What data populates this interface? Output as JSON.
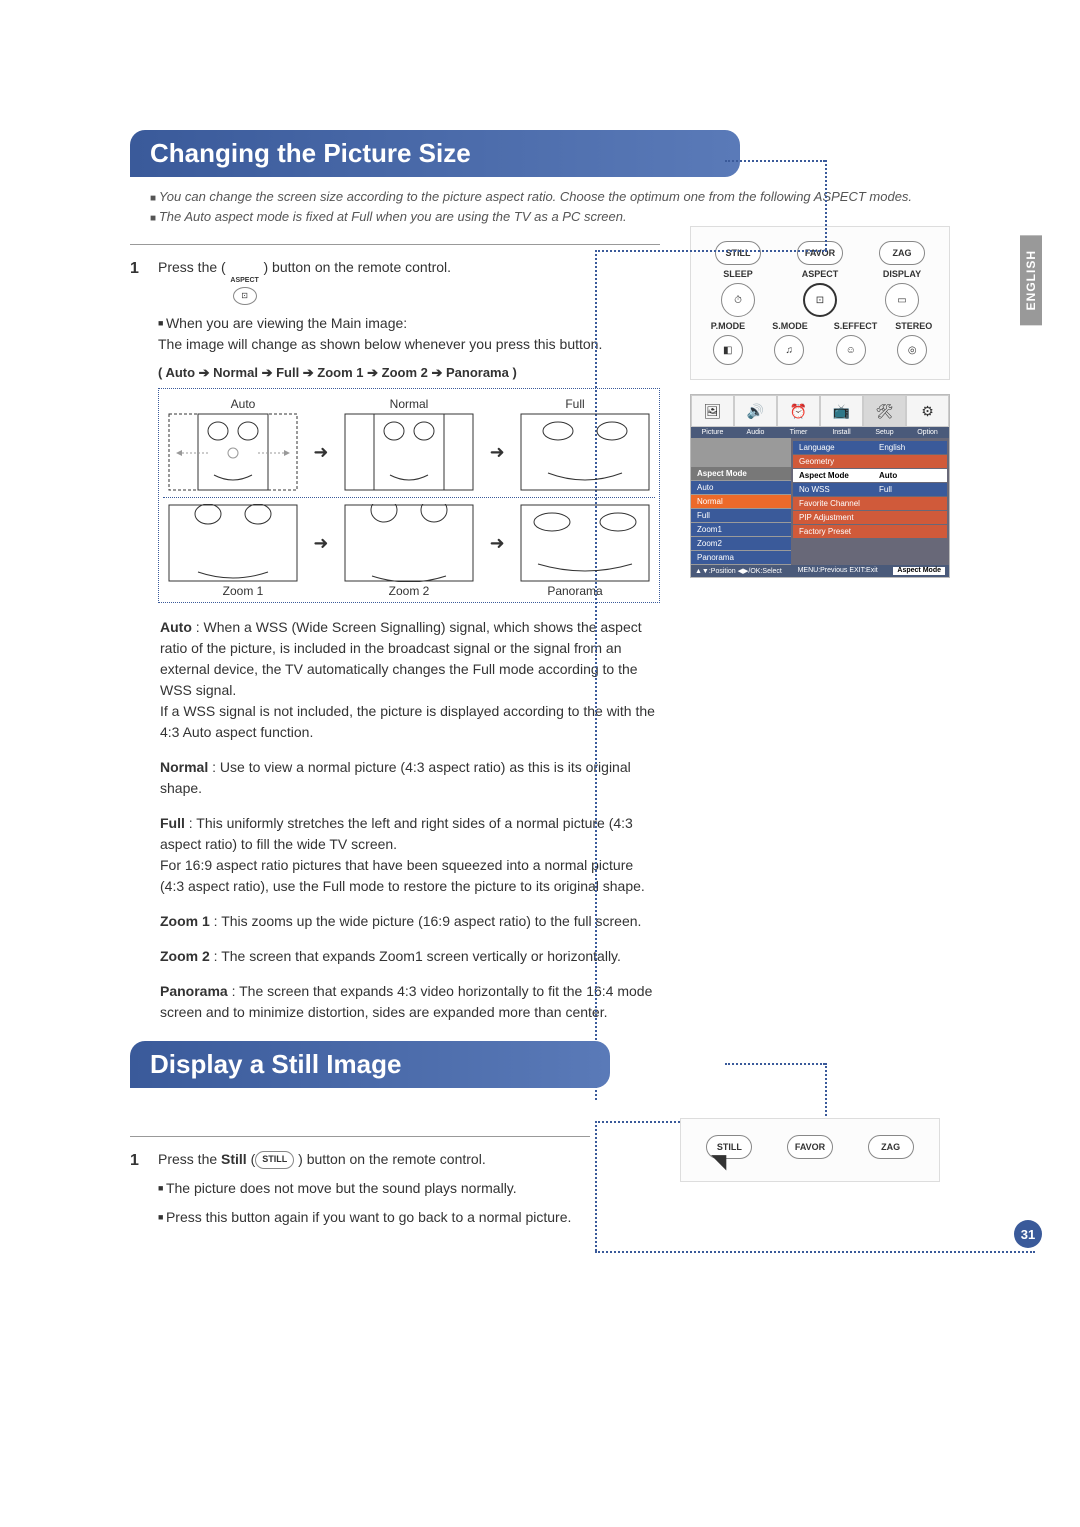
{
  "language_tab": "ENGLISH",
  "page_number": "31",
  "section1": {
    "title": "Changing the Picture Size",
    "intro1": "You can change the screen size according to the picture aspect ratio. Choose the optimum one from the following ASPECT modes.",
    "intro2": "The Auto aspect mode is fixed at Full when you are using the TV as a PC screen.",
    "step1_num": "1",
    "step1_text_a": "Press the (",
    "step1_icon_label": "ASPECT",
    "step1_text_b": ") button on the remote control.",
    "step1_sub1": "When you are viewing the Main image:\nThe image will change as shown below whenever you press this button.",
    "sequence": "( Auto ➔ Normal ➔ Full ➔ Zoom 1 ➔ Zoom 2 ➔ Panorama )",
    "labels": {
      "auto": "Auto",
      "normal": "Normal",
      "full": "Full",
      "zoom1": "Zoom 1",
      "zoom2": "Zoom 2",
      "panorama": "Panorama"
    },
    "desc_auto_label": "Auto",
    "desc_auto": " : When a WSS (Wide Screen Signalling) signal, which shows the aspect ratio of the picture, is included in the broadcast signal or the signal from an external device, the TV automatically changes the Full mode according to the WSS signal.\nIf a WSS signal is not included, the picture is displayed according to the with the 4:3 Auto aspect function.",
    "desc_normal_label": "Normal",
    "desc_normal": " : Use to view a normal picture (4:3 aspect ratio) as this is its original shape.",
    "desc_full_label": "Full",
    "desc_full": " : This uniformly stretches the left and right sides of a normal picture (4:3 aspect ratio) to fill the wide TV screen.\nFor 16:9 aspect ratio pictures that have been squeezed into a normal picture (4:3 aspect ratio), use the Full mode to restore the picture to its original shape.",
    "desc_zoom1_label": "Zoom 1",
    "desc_zoom1": " : This zooms up the wide picture (16:9 aspect ratio) to the full screen.",
    "desc_zoom2_label": "Zoom 2",
    "desc_zoom2": " : The screen that expands Zoom1 screen vertically or horizontally.",
    "desc_panorama_label": "Panorama",
    "desc_panorama": " : The screen that expands 4:3 video horizontally to fit the 16:4 mode screen and to minimize distortion, sides are expanded more than center."
  },
  "section2": {
    "title": "Display a Still Image",
    "step1_num": "1",
    "step1_text_a": "Press the ",
    "step1_bold": "Still",
    "step1_text_b": " (",
    "step1_icon": "STILL",
    "step1_text_c": " ) button on the remote control.",
    "sub1": "The picture does not move but the sound plays normally.",
    "sub2": "Press this button again if you want to go back to a normal picture."
  },
  "remote": {
    "r1": [
      "STILL",
      "FAVOR",
      "ZAG"
    ],
    "r2": [
      "SLEEP",
      "ASPECT",
      "DISPLAY"
    ],
    "r3": [
      "P.MODE",
      "S.MODE",
      "S.EFFECT",
      "STEREO"
    ]
  },
  "osd": {
    "tabs": [
      "Picture",
      "Audio",
      "Timer",
      "Install",
      "Setup",
      "Option"
    ],
    "left_header": "Aspect Mode",
    "left_items": [
      "Auto",
      "Normal",
      "Full",
      "Zoom1",
      "Zoom2",
      "Panorama"
    ],
    "right_items": [
      {
        "label": "Language",
        "value": "English"
      },
      {
        "label": "Geometry",
        "value": ""
      },
      {
        "label": "Aspect Mode",
        "value": "Auto"
      },
      {
        "label": "No WSS",
        "value": "Full"
      },
      {
        "label": "Favorite Channel",
        "value": ""
      },
      {
        "label": "PIP Adjustment",
        "value": ""
      },
      {
        "label": "Factory Preset",
        "value": ""
      }
    ],
    "footer_left": "▲▼:Position ◀▶/OK:Select",
    "footer_mid": "MENU:Previous EXIT:Exit",
    "footer_right": "Aspect Mode"
  }
}
